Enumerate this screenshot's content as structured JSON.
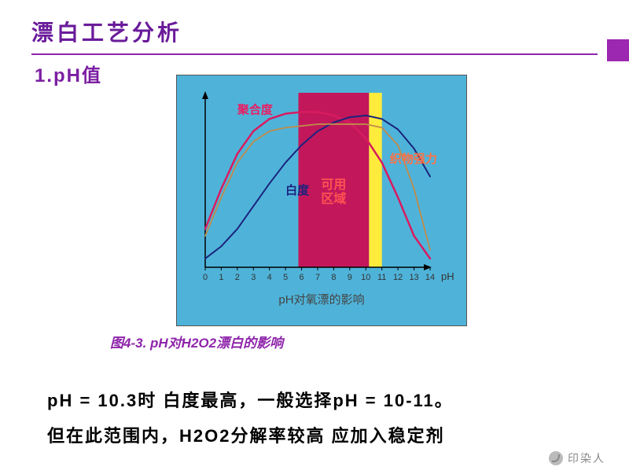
{
  "title": "漂白工艺分析",
  "subtitle": "1.pH值",
  "caption": "图4-3. pH对H2O2漂白的影响",
  "body_line1": "pH = 10.3时 白度最高，一般选择pH = 10-11。",
  "body_line2": "但在此范围内，H2O2分解率较高 应加入稳定剂",
  "watermark": "印染人",
  "chart": {
    "caption_inner": "pH对氧漂的影响",
    "x_axis_label": "pH",
    "x_ticks": [
      "0",
      "1",
      "2",
      "3",
      "4",
      "5",
      "6",
      "7",
      "8",
      "9",
      "10",
      "11",
      "12",
      "13",
      "14"
    ],
    "x_range": [
      0,
      14
    ],
    "y_range": [
      0,
      100
    ],
    "usable_zone": {
      "x_start": 5.8,
      "x_end": 10.2,
      "color": "#c2185b",
      "label": "可用\n区域",
      "label_color": "#ff5252"
    },
    "yellow_zone": {
      "x_start": 10.2,
      "x_end": 11.0,
      "color": "#ffeb3b"
    },
    "background_color": "#4fb3d9",
    "axis_color": "#000000",
    "series": {
      "juhedu": {
        "label": "聚合度",
        "label_color": "#e91e63",
        "label_x": 2.0,
        "label_y": 88,
        "color": "#d81b60",
        "width": 2.5,
        "points": [
          [
            0,
            22
          ],
          [
            1,
            45
          ],
          [
            2,
            65
          ],
          [
            3,
            78
          ],
          [
            4,
            85
          ],
          [
            5,
            88
          ],
          [
            6,
            89
          ],
          [
            7,
            89
          ],
          [
            8,
            87
          ],
          [
            9,
            83
          ],
          [
            10,
            74
          ],
          [
            11,
            60
          ],
          [
            12,
            40
          ],
          [
            13,
            18
          ],
          [
            14,
            5
          ]
        ]
      },
      "baidu": {
        "label": "白度",
        "label_color": "#1a237e",
        "label_x": 5.0,
        "label_y": 42,
        "color": "#1a237e",
        "width": 2,
        "points": [
          [
            0,
            5
          ],
          [
            1,
            12
          ],
          [
            2,
            22
          ],
          [
            3,
            35
          ],
          [
            4,
            48
          ],
          [
            5,
            60
          ],
          [
            6,
            70
          ],
          [
            7,
            78
          ],
          [
            8,
            83
          ],
          [
            9,
            86
          ],
          [
            10,
            87
          ],
          [
            11,
            85
          ],
          [
            12,
            79
          ],
          [
            13,
            68
          ],
          [
            14,
            52
          ]
        ]
      },
      "qiangli": {
        "label": "织物强力",
        "label_color": "#ff7043",
        "label_x": 11.5,
        "label_y": 60,
        "color": "#bf8b4b",
        "width": 1.8,
        "points": [
          [
            0,
            18
          ],
          [
            1,
            40
          ],
          [
            2,
            60
          ],
          [
            3,
            72
          ],
          [
            4,
            78
          ],
          [
            5,
            80
          ],
          [
            6,
            81
          ],
          [
            7,
            82
          ],
          [
            8,
            82
          ],
          [
            9,
            82
          ],
          [
            10,
            82
          ],
          [
            11,
            80
          ],
          [
            12,
            70
          ],
          [
            13,
            45
          ],
          [
            14,
            10
          ]
        ]
      }
    }
  },
  "colors": {
    "title_color": "#6a1b9a",
    "underline_color": "#8e24aa",
    "subtitle_color": "#7b1fa2",
    "accent_block": "#9c27b0",
    "caption_color": "#8e24aa"
  }
}
